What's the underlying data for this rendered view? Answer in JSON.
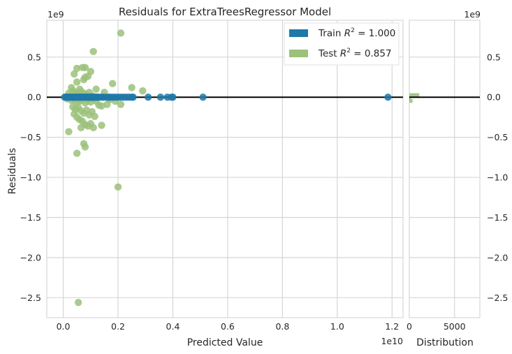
{
  "chart_data": [
    {
      "type": "scatter",
      "title": "Residuals for ExtraTreesRegressor Model",
      "xlabel": "Predicted Value",
      "ylabel": "Residuals",
      "x_offset_text": "1e10",
      "y_offset_text": "1e9",
      "xlim": [
        -0.06,
        1.24
      ],
      "ylim": [
        -2.75,
        0.96
      ],
      "x_ticks": [
        0.0,
        0.2,
        0.4,
        0.6,
        0.8,
        1.0,
        1.2
      ],
      "x_tick_labels": [
        "0.0",
        "0.2",
        "0.4",
        "0.6",
        "0.8",
        "1.0",
        "1.2"
      ],
      "y_ticks": [
        0.5,
        0.0,
        -0.5,
        -1.0,
        -1.5,
        -2.0,
        -2.5
      ],
      "y_tick_labels": [
        "0.5",
        "0.0",
        "−0.5",
        "−1.0",
        "−1.5",
        "−2.0",
        "−2.5"
      ],
      "grid": true,
      "zero_line": 0.0,
      "legend_position": "top-right",
      "colors": {
        "train": "#1f78a8",
        "test": "#9bc17a",
        "zero_line": "#000000",
        "grid": "#d6d6d6"
      },
      "series": [
        {
          "name": "Train $R^2 = 1.000$",
          "legend_label": "Train R² = 1.000",
          "legend_prefix": "Train ",
          "legend_stat": " = 1.000",
          "color": "#1f78a8",
          "points": [
            [
              0.005,
              0.0
            ],
            [
              0.01,
              0.0
            ],
            [
              0.015,
              0.0
            ],
            [
              0.02,
              0.0
            ],
            [
              0.025,
              0.0
            ],
            [
              0.03,
              0.0
            ],
            [
              0.035,
              0.0
            ],
            [
              0.04,
              0.0
            ],
            [
              0.045,
              0.0
            ],
            [
              0.05,
              0.0
            ],
            [
              0.055,
              0.0
            ],
            [
              0.06,
              0.0
            ],
            [
              0.065,
              0.0
            ],
            [
              0.07,
              0.0
            ],
            [
              0.075,
              0.0
            ],
            [
              0.08,
              0.0
            ],
            [
              0.085,
              0.0
            ],
            [
              0.09,
              0.0
            ],
            [
              0.095,
              0.0
            ],
            [
              0.1,
              0.0
            ],
            [
              0.105,
              0.0
            ],
            [
              0.11,
              0.0
            ],
            [
              0.115,
              0.0
            ],
            [
              0.12,
              0.0
            ],
            [
              0.125,
              0.0
            ],
            [
              0.13,
              0.0
            ],
            [
              0.14,
              0.0
            ],
            [
              0.145,
              0.0
            ],
            [
              0.155,
              0.0
            ],
            [
              0.165,
              0.0
            ],
            [
              0.17,
              0.0
            ],
            [
              0.18,
              0.0
            ],
            [
              0.19,
              0.0
            ],
            [
              0.2,
              0.0
            ],
            [
              0.21,
              0.0
            ],
            [
              0.22,
              0.0
            ],
            [
              0.23,
              0.0
            ],
            [
              0.24,
              0.0
            ],
            [
              0.25,
              0.0
            ],
            [
              0.255,
              0.0
            ],
            [
              0.31,
              0.0
            ],
            [
              0.355,
              0.0
            ],
            [
              0.38,
              0.0
            ],
            [
              0.395,
              0.0
            ],
            [
              0.4,
              0.0
            ],
            [
              0.51,
              0.0
            ],
            [
              1.185,
              0.0
            ]
          ]
        },
        {
          "name": "Test $R^2 = 0.857$",
          "legend_label": "Test R² = 0.857",
          "legend_prefix": "Test ",
          "legend_stat": " = 0.857",
          "color": "#9bc17a",
          "points": [
            [
              0.21,
              0.8
            ],
            [
              0.11,
              0.57
            ],
            [
              0.08,
              0.37
            ],
            [
              0.07,
              0.37
            ],
            [
              0.04,
              0.29
            ],
            [
              0.05,
              0.36
            ],
            [
              0.1,
              0.32
            ],
            [
              0.08,
              0.25
            ],
            [
              0.075,
              0.22
            ],
            [
              0.09,
              0.26
            ],
            [
              0.05,
              0.19
            ],
            [
              0.18,
              0.17
            ],
            [
              0.25,
              0.12
            ],
            [
              0.29,
              0.08
            ],
            [
              0.12,
              0.1
            ],
            [
              0.15,
              0.06
            ],
            [
              0.03,
              0.12
            ],
            [
              0.06,
              0.1
            ],
            [
              0.02,
              0.05
            ],
            [
              0.035,
              0.08
            ],
            [
              0.045,
              0.06
            ],
            [
              0.055,
              0.04
            ],
            [
              0.065,
              0.07
            ],
            [
              0.075,
              0.05
            ],
            [
              0.085,
              0.03
            ],
            [
              0.095,
              0.06
            ],
            [
              0.105,
              0.02
            ],
            [
              0.01,
              0.0
            ],
            [
              0.015,
              -0.02
            ],
            [
              0.025,
              0.01
            ],
            [
              0.03,
              -0.04
            ],
            [
              0.04,
              -0.03
            ],
            [
              0.05,
              -0.06
            ],
            [
              0.06,
              -0.05
            ],
            [
              0.07,
              -0.03
            ],
            [
              0.08,
              -0.07
            ],
            [
              0.09,
              -0.04
            ],
            [
              0.1,
              -0.06
            ],
            [
              0.11,
              -0.02
            ],
            [
              0.12,
              -0.05
            ],
            [
              0.13,
              -0.1
            ],
            [
              0.14,
              -0.11
            ],
            [
              0.16,
              -0.09
            ],
            [
              0.17,
              -0.03
            ],
            [
              0.19,
              -0.05
            ],
            [
              0.21,
              -0.09
            ],
            [
              0.035,
              -0.12
            ],
            [
              0.045,
              -0.15
            ],
            [
              0.055,
              -0.13
            ],
            [
              0.065,
              -0.17
            ],
            [
              0.075,
              -0.2
            ],
            [
              0.085,
              -0.16
            ],
            [
              0.095,
              -0.22
            ],
            [
              0.105,
              -0.18
            ],
            [
              0.115,
              -0.24
            ],
            [
              0.04,
              -0.21
            ],
            [
              0.05,
              -0.25
            ],
            [
              0.06,
              -0.28
            ],
            [
              0.07,
              -0.3
            ],
            [
              0.08,
              -0.34
            ],
            [
              0.09,
              -0.36
            ],
            [
              0.1,
              -0.33
            ],
            [
              0.11,
              -0.38
            ],
            [
              0.065,
              -0.38
            ],
            [
              0.14,
              -0.35
            ],
            [
              0.075,
              -0.58
            ],
            [
              0.08,
              -0.62
            ],
            [
              0.02,
              -0.43
            ],
            [
              0.05,
              -0.7
            ],
            [
              0.2,
              -1.12
            ],
            [
              0.055,
              -2.56
            ]
          ]
        }
      ]
    },
    {
      "type": "bar",
      "orientation": "horizontal",
      "xlabel": "Distribution",
      "y_offset_text": "1e9",
      "xlim": [
        0,
        7800
      ],
      "x_ticks": [
        0,
        5000
      ],
      "x_tick_labels": [
        "0",
        "5000"
      ],
      "ylim": [
        -2.75,
        0.96
      ],
      "y_ticks": [
        0.5,
        0.0,
        -0.5,
        -1.0,
        -1.5,
        -2.0,
        -2.5
      ],
      "y_tick_labels": [
        "0.5",
        "0.0",
        "−0.5",
        "−1.0",
        "−1.5",
        "−2.0",
        "−2.5"
      ],
      "grid": true,
      "zero_line": 0.0,
      "series": [
        {
          "bins": [
            {
              "y0": 0.0,
              "y1": 0.05,
              "count": 1100,
              "color": "#9bc17a"
            },
            {
              "y0": -0.05,
              "y1": 0.0,
              "count": 80,
              "color": "#1f78a8"
            },
            {
              "y0": -0.07,
              "y1": -0.02,
              "count": 350,
              "color": "#9bc17a"
            }
          ]
        }
      ]
    }
  ]
}
